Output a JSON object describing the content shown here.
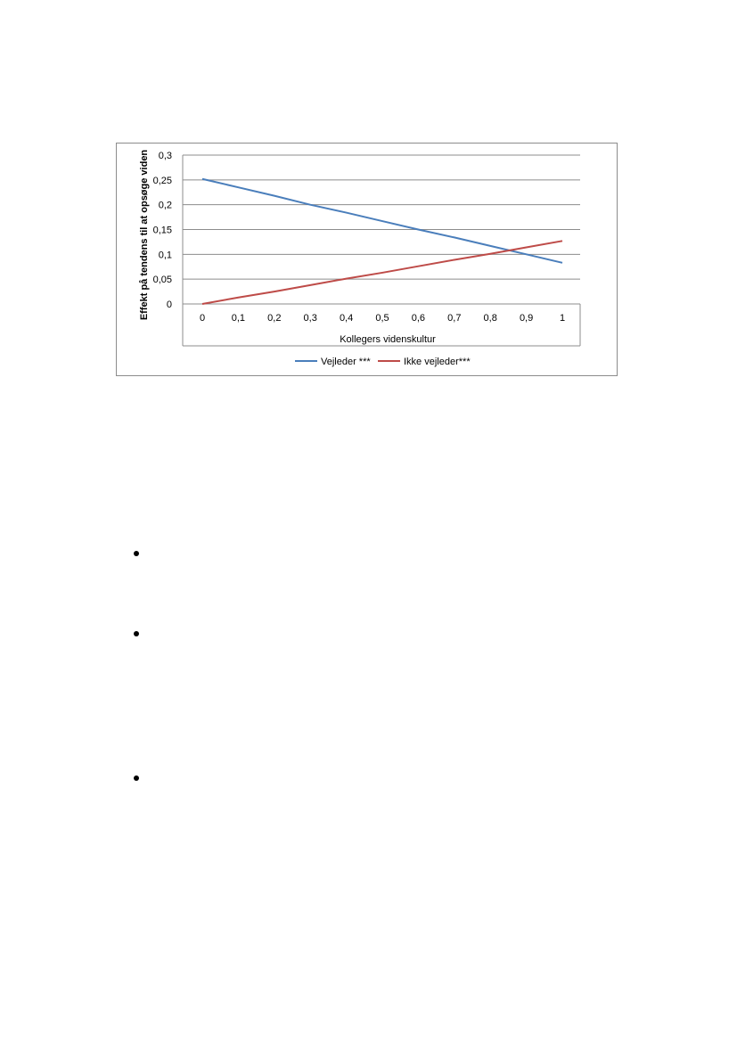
{
  "chart_data": {
    "type": "line",
    "xlabel": "Kollegers videnskultur",
    "ylabel": "Effekt på tendens til at opsøge viden",
    "x": [
      0,
      0.1,
      0.2,
      0.3,
      0.4,
      0.5,
      0.6,
      0.7,
      0.8,
      0.9,
      1
    ],
    "x_tick_labels": [
      "0",
      "0,1",
      "0,2",
      "0,3",
      "0,4",
      "0,5",
      "0,6",
      "0,7",
      "0,8",
      "0,9",
      "1"
    ],
    "y_ticks": [
      0,
      0.05,
      0.1,
      0.15,
      0.2,
      0.25,
      0.3
    ],
    "y_tick_labels": [
      "0",
      "0,05",
      "0,1",
      "0,15",
      "0,2",
      "0,25",
      "0,3"
    ],
    "ylim": [
      0,
      0.3
    ],
    "grid": true,
    "legend_position": "bottom",
    "series": [
      {
        "name": "Vejleder ***",
        "color": "#4a7ebb",
        "values": [
          0.252,
          0.235,
          0.218,
          0.2,
          0.184,
          0.167,
          0.15,
          0.134,
          0.117,
          0.1,
          0.083
        ]
      },
      {
        "name": "Ikke vejleder***",
        "color": "#be4b48",
        "values": [
          0.0,
          0.013,
          0.025,
          0.038,
          0.051,
          0.063,
          0.076,
          0.089,
          0.101,
          0.114,
          0.127
        ]
      }
    ]
  },
  "bullets": [
    "",
    "",
    ""
  ]
}
